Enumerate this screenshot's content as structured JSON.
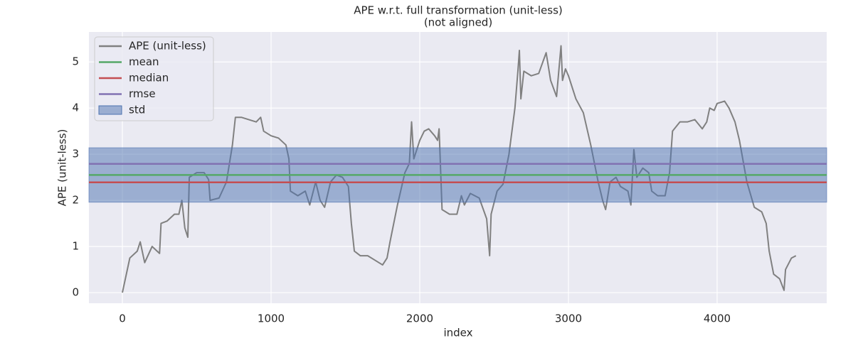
{
  "chart_data": {
    "type": "line",
    "title": "APE w.r.t. full transformation (unit-less)",
    "subtitle": "(not aligned)",
    "x_label": "index",
    "y_label": "APE (unit-less)",
    "xlim": [
      -225,
      4737
    ],
    "ylim": [
      -0.23,
      5.65
    ],
    "xticks": [
      0,
      1000,
      2000,
      3000,
      4000
    ],
    "yticks": [
      0,
      1,
      2,
      3,
      4,
      5
    ],
    "grid": true,
    "legend": "upper left",
    "series": [
      {
        "name": "APE (unit-less)",
        "color": "#808080",
        "x": [
          0,
          20,
          50,
          100,
          120,
          150,
          200,
          250,
          260,
          300,
          350,
          380,
          400,
          420,
          440,
          450,
          500,
          550,
          580,
          590,
          650,
          700,
          740,
          760,
          800,
          850,
          900,
          930,
          950,
          1000,
          1050,
          1100,
          1120,
          1130,
          1180,
          1230,
          1260,
          1300,
          1330,
          1360,
          1400,
          1440,
          1480,
          1520,
          1540,
          1560,
          1600,
          1650,
          1700,
          1750,
          1780,
          1800,
          1850,
          1900,
          1930,
          1945,
          1960,
          2000,
          2030,
          2060,
          2100,
          2120,
          2130,
          2150,
          2200,
          2250,
          2280,
          2300,
          2340,
          2400,
          2450,
          2470,
          2480,
          2520,
          2560,
          2600,
          2640,
          2660,
          2670,
          2680,
          2700,
          2750,
          2800,
          2850,
          2880,
          2920,
          2950,
          2960,
          2980,
          3000,
          3050,
          3100,
          3150,
          3200,
          3230,
          3250,
          3280,
          3320,
          3350,
          3400,
          3420,
          3440,
          3460,
          3500,
          3540,
          3560,
          3600,
          3650,
          3680,
          3700,
          3750,
          3800,
          3850,
          3900,
          3930,
          3950,
          3980,
          4000,
          4050,
          4080,
          4120,
          4150,
          4200,
          4250,
          4300,
          4330,
          4350,
          4380,
          4420,
          4450,
          4460,
          4500,
          4530
        ],
        "values": [
          0.0,
          0.3,
          0.75,
          0.9,
          1.1,
          0.65,
          1.0,
          0.85,
          1.5,
          1.55,
          1.7,
          1.7,
          2.0,
          1.4,
          1.2,
          2.5,
          2.6,
          2.6,
          2.45,
          2.0,
          2.05,
          2.4,
          3.2,
          3.8,
          3.8,
          3.75,
          3.7,
          3.8,
          3.5,
          3.4,
          3.35,
          3.2,
          2.9,
          2.2,
          2.1,
          2.2,
          1.9,
          2.4,
          2.0,
          1.85,
          2.4,
          2.55,
          2.5,
          2.3,
          1.5,
          0.9,
          0.8,
          0.8,
          0.7,
          0.6,
          0.75,
          1.1,
          1.9,
          2.6,
          2.8,
          3.7,
          2.9,
          3.3,
          3.5,
          3.55,
          3.4,
          3.3,
          3.55,
          1.8,
          1.7,
          1.7,
          2.1,
          1.9,
          2.15,
          2.05,
          1.6,
          0.8,
          1.7,
          2.2,
          2.35,
          3.0,
          4.0,
          4.8,
          5.25,
          4.2,
          4.8,
          4.7,
          4.75,
          5.2,
          4.6,
          4.25,
          5.35,
          4.6,
          4.85,
          4.7,
          4.2,
          3.9,
          3.2,
          2.4,
          2.0,
          1.8,
          2.4,
          2.5,
          2.3,
          2.2,
          1.9,
          3.1,
          2.5,
          2.7,
          2.6,
          2.2,
          2.1,
          2.1,
          2.6,
          3.5,
          3.7,
          3.7,
          3.75,
          3.55,
          3.7,
          4.0,
          3.95,
          4.1,
          4.15,
          4.0,
          3.7,
          3.3,
          2.4,
          1.85,
          1.75,
          1.5,
          0.9,
          0.4,
          0.3,
          0.05,
          0.5,
          0.75,
          0.8
        ]
      }
    ],
    "hlines": [
      {
        "name": "mean",
        "color": "#55a868",
        "value": 2.55
      },
      {
        "name": "median",
        "color": "#c44e52",
        "value": 2.39
      },
      {
        "name": "rmse",
        "color": "#8172b2",
        "value": 2.79
      }
    ],
    "band": {
      "name": "std",
      "color": "#4c72b0",
      "values": [
        1.96,
        3.14
      ]
    }
  }
}
